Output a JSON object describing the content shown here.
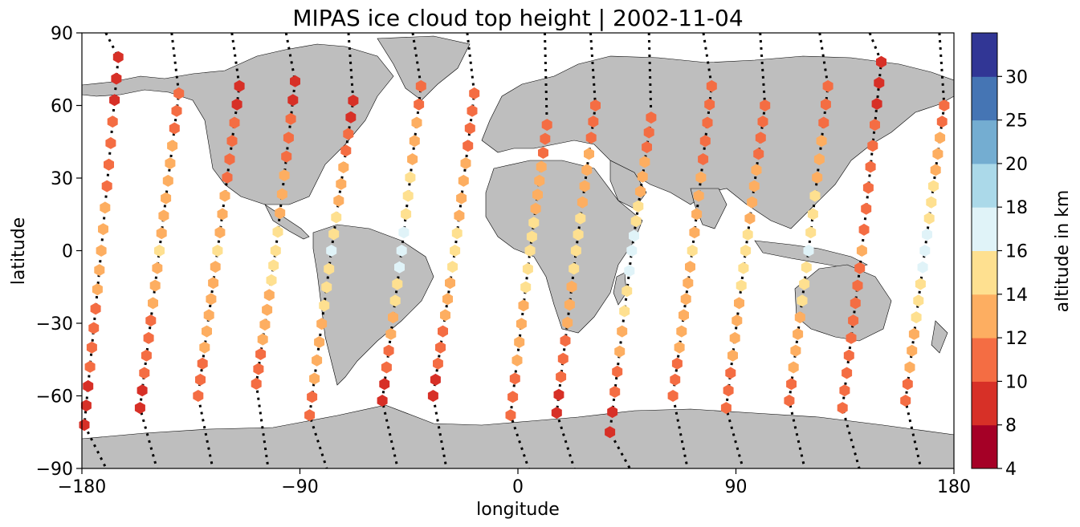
{
  "title": "MIPAS ice cloud top height | 2002-11-04",
  "chart_data": {
    "type": "scatter",
    "title": "MIPAS ice cloud top height | 2002-11-04",
    "xlabel": "longitude",
    "ylabel": "latitude",
    "xlim": [
      -180,
      180
    ],
    "ylim": [
      -90,
      90
    ],
    "xticks": [
      -180,
      -90,
      0,
      90,
      180
    ],
    "yticks": [
      -90,
      -60,
      -30,
      0,
      30,
      60,
      90
    ],
    "xtick_labels": [
      "−180",
      "−90",
      "0",
      "90",
      "180"
    ],
    "ytick_labels": [
      "−90",
      "−60",
      "−30",
      "0",
      "30",
      "60",
      "90"
    ],
    "grid": false,
    "marker": "hexagon",
    "land_color": "#bebebe",
    "colorbar": {
      "label": "altitude in km",
      "bounds": [
        4,
        8,
        10,
        12,
        14,
        16,
        18,
        20,
        25,
        30
      ],
      "tick_labels": [
        "4",
        "8",
        "10",
        "12",
        "14",
        "16",
        "18",
        "20",
        "25",
        "30"
      ],
      "colors": [
        "#a50026",
        "#d73027",
        "#f46d43",
        "#fdae61",
        "#fee090",
        "#e0f3f8",
        "#abd9e9",
        "#74add1",
        "#4575b4",
        "#313695"
      ]
    },
    "tracks": [
      {
        "lon": [
          -165,
          -172,
          -179
        ],
        "lat": [
          80,
          0,
          -72
        ],
        "h": [
          9,
          13,
          9
        ]
      },
      {
        "lon": [
          -140,
          -148,
          -156
        ],
        "lat": [
          65,
          0,
          -65
        ],
        "h": [
          11,
          14,
          9
        ]
      },
      {
        "lon": [
          -115,
          -124,
          -132
        ],
        "lat": [
          68,
          0,
          -60
        ],
        "h": [
          9,
          14,
          11
        ]
      },
      {
        "lon": [
          -92,
          -100,
          -108
        ],
        "lat": [
          70,
          0,
          -55
        ],
        "h": [
          9,
          15,
          11
        ]
      },
      {
        "lon": [
          -68,
          -77,
          -86
        ],
        "lat": [
          62,
          0,
          -68
        ],
        "h": [
          9,
          16,
          11
        ]
      },
      {
        "lon": [
          -40,
          -48,
          -56
        ],
        "lat": [
          68,
          0,
          -62
        ],
        "h": [
          11,
          17,
          9
        ]
      },
      {
        "lon": [
          -18,
          -26,
          -35
        ],
        "lat": [
          65,
          0,
          -60
        ],
        "h": [
          10,
          15,
          9
        ]
      },
      {
        "lon": [
          12,
          5,
          -3
        ],
        "lat": [
          52,
          0,
          -68
        ],
        "h": [
          11,
          15,
          11
        ]
      },
      {
        "lon": [
          32,
          24,
          16
        ],
        "lat": [
          60,
          0,
          -67
        ],
        "h": [
          11,
          15,
          9
        ]
      },
      {
        "lon": [
          55,
          47,
          38
        ],
        "lat": [
          55,
          0,
          -75
        ],
        "h": [
          10,
          17,
          9
        ]
      },
      {
        "lon": [
          80,
          72,
          64
        ],
        "lat": [
          68,
          0,
          -60
        ],
        "h": [
          10,
          14,
          11
        ]
      },
      {
        "lon": [
          102,
          94,
          86
        ],
        "lat": [
          60,
          0,
          -65
        ],
        "h": [
          10,
          15,
          11
        ]
      },
      {
        "lon": [
          128,
          120,
          112
        ],
        "lat": [
          68,
          0,
          -62
        ],
        "h": [
          10,
          16,
          11
        ]
      },
      {
        "lon": [
          150,
          142,
          134
        ],
        "lat": [
          78,
          0,
          -65
        ],
        "h": [
          9,
          12,
          11
        ]
      },
      {
        "lon": [
          176,
          168,
          160
        ],
        "lat": [
          60,
          0,
          -62
        ],
        "h": [
          11,
          17,
          11
        ]
      }
    ]
  }
}
